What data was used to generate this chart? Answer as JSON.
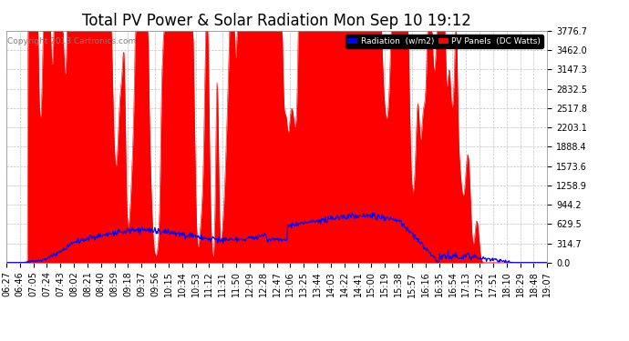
{
  "title": "Total PV Power & Solar Radiation Mon Sep 10 19:12",
  "copyright": "Copyright 2018 Cartronics.com",
  "ylabel_right_ticks": [
    0.0,
    314.7,
    629.5,
    944.2,
    1258.9,
    1573.6,
    1888.4,
    2203.1,
    2517.8,
    2832.5,
    3147.3,
    3462.0,
    3776.7
  ],
  "ylim": [
    0,
    3776.7
  ],
  "background_color": "#ffffff",
  "plot_bg_color": "#ffffff",
  "grid_color": "#bbbbbb",
  "red_fill_color": "#ff0000",
  "blue_line_color": "#0000ff",
  "title_fontsize": 12,
  "tick_fontsize": 7,
  "legend_radiation_color": "#0000ff",
  "legend_pv_color": "#ff0000",
  "x_labels": [
    "06:27",
    "06:46",
    "07:05",
    "07:24",
    "07:43",
    "08:02",
    "08:21",
    "08:40",
    "08:59",
    "09:18",
    "09:37",
    "09:56",
    "10:15",
    "10:34",
    "10:53",
    "11:12",
    "11:31",
    "11:50",
    "12:09",
    "12:28",
    "12:47",
    "13:06",
    "13:25",
    "13:44",
    "14:03",
    "14:22",
    "14:41",
    "15:00",
    "15:19",
    "15:38",
    "15:57",
    "16:16",
    "16:35",
    "16:54",
    "17:13",
    "17:32",
    "17:51",
    "18:10",
    "18:29",
    "18:48",
    "19:07"
  ]
}
